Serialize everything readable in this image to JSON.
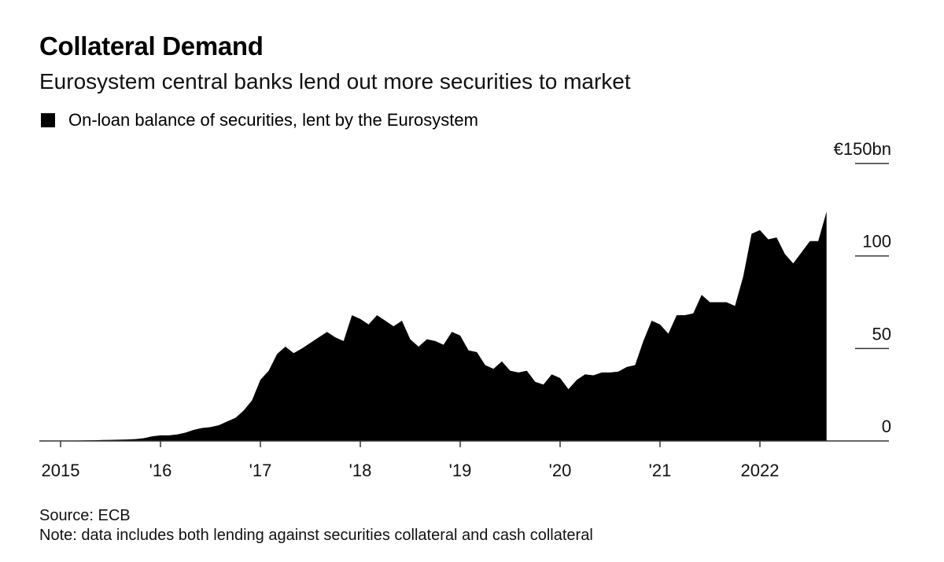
{
  "header": {
    "title": "Collateral Demand",
    "subtitle": "Eurosystem central banks lend out more securities to market"
  },
  "legend": {
    "label": "On-loan balance of securities, lent by the Eurosystem",
    "color": "#000000"
  },
  "footer": {
    "source": "Source: ECB",
    "note": "Note: data includes both lending against securities collateral and cash collateral"
  },
  "chart_data": {
    "type": "area",
    "title": "Collateral Demand",
    "subtitle": "Eurosystem central banks lend out more securities to market",
    "xlabel": "",
    "ylabel": "",
    "ylim": [
      0,
      150
    ],
    "y_ticks": [
      {
        "value": 150,
        "label": "€150bn"
      },
      {
        "value": 100,
        "label": "100"
      },
      {
        "value": 50,
        "label": "50"
      },
      {
        "value": 0,
        "label": "0"
      }
    ],
    "x_ticks": [
      {
        "date": "2015-01",
        "label": "2015"
      },
      {
        "date": "2016-01",
        "label": "'16"
      },
      {
        "date": "2017-01",
        "label": "'17"
      },
      {
        "date": "2018-01",
        "label": "'18"
      },
      {
        "date": "2019-01",
        "label": "'19"
      },
      {
        "date": "2020-01",
        "label": "'20"
      },
      {
        "date": "2021-01",
        "label": "'21"
      },
      {
        "date": "2022-01",
        "label": "2022"
      }
    ],
    "grid": false,
    "legend_position": "top-left",
    "series": [
      {
        "name": "On-loan balance of securities, lent by the Eurosystem",
        "color": "#000000",
        "x": [
          "2015-04",
          "2015-05",
          "2015-06",
          "2015-07",
          "2015-08",
          "2015-09",
          "2015-10",
          "2015-11",
          "2015-12",
          "2016-01",
          "2016-02",
          "2016-03",
          "2016-04",
          "2016-05",
          "2016-06",
          "2016-07",
          "2016-08",
          "2016-09",
          "2016-10",
          "2016-11",
          "2016-12",
          "2017-01",
          "2017-02",
          "2017-03",
          "2017-04",
          "2017-05",
          "2017-06",
          "2017-07",
          "2017-08",
          "2017-09",
          "2017-10",
          "2017-11",
          "2017-12",
          "2018-01",
          "2018-02",
          "2018-03",
          "2018-04",
          "2018-05",
          "2018-06",
          "2018-07",
          "2018-08",
          "2018-09",
          "2018-10",
          "2018-11",
          "2018-12",
          "2019-01",
          "2019-02",
          "2019-03",
          "2019-04",
          "2019-05",
          "2019-06",
          "2019-07",
          "2019-08",
          "2019-09",
          "2019-10",
          "2019-11",
          "2019-12",
          "2020-01",
          "2020-02",
          "2020-03",
          "2020-04",
          "2020-05",
          "2020-06",
          "2020-07",
          "2020-08",
          "2020-09",
          "2020-10",
          "2020-11",
          "2020-12",
          "2021-01",
          "2021-02",
          "2021-03",
          "2021-04",
          "2021-05",
          "2021-06",
          "2021-07",
          "2021-08",
          "2021-09",
          "2021-10",
          "2021-11",
          "2021-12",
          "2022-01",
          "2022-02",
          "2022-03",
          "2022-04",
          "2022-05",
          "2022-06",
          "2022-07",
          "2022-08",
          "2022-09"
        ],
        "values": [
          0.3,
          0.4,
          0.5,
          0.6,
          0.7,
          0.8,
          1.0,
          1.5,
          2.5,
          3.0,
          3.0,
          3.5,
          4.5,
          6.0,
          7.0,
          7.5,
          8.5,
          10.5,
          12.5,
          16.5,
          22.0,
          33.0,
          38.0,
          47.0,
          51.0,
          47.5,
          50.0,
          53.0,
          56.0,
          59.0,
          56.0,
          54.0,
          68.0,
          66.0,
          63.0,
          68.0,
          65.0,
          62.0,
          65.0,
          55.0,
          51.0,
          55.0,
          54.0,
          52.0,
          59.0,
          57.0,
          49.0,
          48.0,
          41.0,
          39.0,
          43.0,
          38.0,
          37.0,
          38.0,
          32.0,
          30.5,
          36.0,
          34.0,
          28.0,
          33.0,
          36.0,
          35.5,
          37.0,
          37.0,
          37.5,
          40.0,
          41.0,
          54.0,
          65.0,
          63.0,
          58.0,
          68.0,
          68.0,
          69.0,
          79.0,
          75.0,
          75.0,
          75.0,
          73.0,
          89.0,
          112.0,
          114.0,
          109.0,
          110.0,
          101.0,
          96.0,
          102.0,
          108.0,
          108.0,
          124.0
        ]
      }
    ]
  }
}
